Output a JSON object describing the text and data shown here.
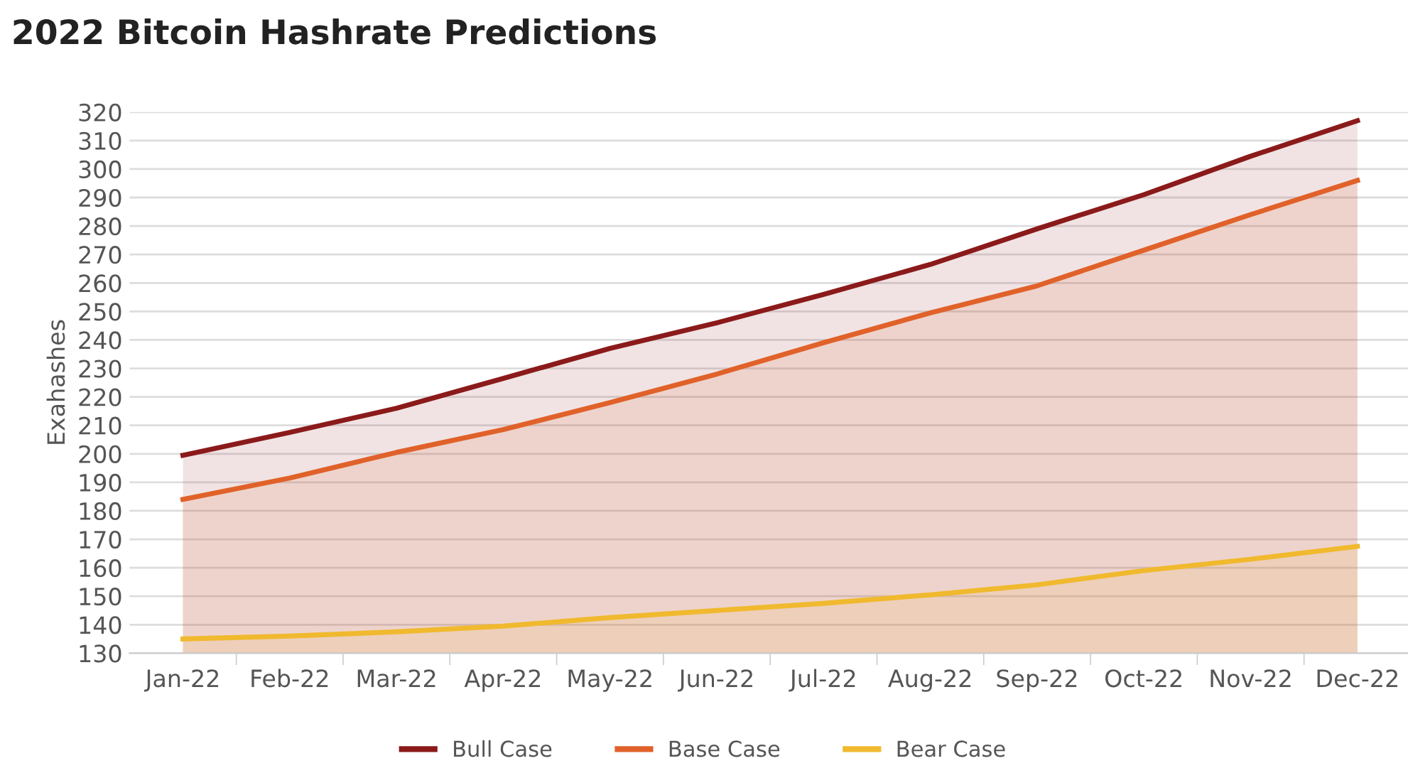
{
  "chart_data": {
    "type": "area",
    "title": "2022 Bitcoin Hashrate Predictions",
    "ylabel": "Exahashes",
    "categories": [
      "Jan-22",
      "Feb-22",
      "Mar-22",
      "Apr-22",
      "May-22",
      "Jun-22",
      "Jul-22",
      "Aug-22",
      "Sep-22",
      "Oct-22",
      "Nov-22",
      "Dec-22"
    ],
    "series": [
      {
        "name": "Bull Case",
        "color": "#8b1a1a",
        "values": [
          199.5,
          207.5,
          216,
          226.5,
          237,
          246,
          256,
          266.5,
          279,
          291,
          304.5,
          317
        ]
      },
      {
        "name": "Base Case",
        "color": "#e0622a",
        "values": [
          184,
          191.5,
          200.5,
          208.5,
          218,
          228,
          239,
          249.5,
          259,
          271.5,
          284,
          296
        ]
      },
      {
        "name": "Bear Case",
        "color": "#f0b92e",
        "values": [
          135,
          136,
          137.5,
          139.5,
          142.5,
          145,
          147.5,
          150.5,
          154,
          159,
          163,
          167.5
        ]
      }
    ],
    "ylim": [
      130,
      320
    ],
    "yticks": [
      130,
      140,
      150,
      160,
      170,
      180,
      190,
      200,
      210,
      220,
      230,
      240,
      250,
      260,
      270,
      280,
      290,
      300,
      310,
      320
    ],
    "grid": "y",
    "legend": "bottom"
  }
}
